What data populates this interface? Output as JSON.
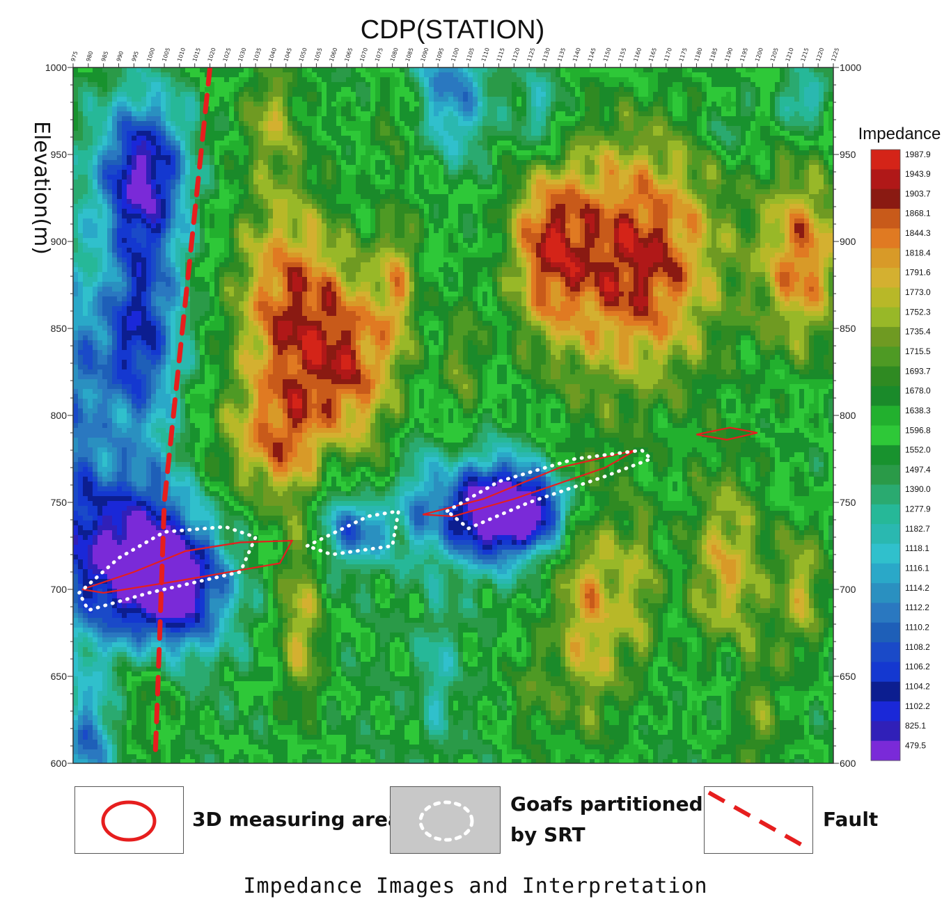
{
  "chart_data": {
    "type": "heatmap",
    "title": "CDP(STATION)",
    "ylabel": "Elevation(m)",
    "x_tick_labels": [
      "975",
      "980",
      "985",
      "990",
      "995",
      "1000",
      "1005",
      "1010",
      "1015",
      "1020",
      "1025",
      "1030",
      "1035",
      "1040",
      "1045",
      "1050",
      "1055",
      "1060",
      "1065",
      "1070",
      "1075",
      "1080",
      "1085",
      "1090",
      "1095",
      "1100",
      "1105",
      "1110",
      "1115",
      "1120",
      "1125",
      "1130",
      "1135",
      "1140",
      "1145",
      "1150",
      "1155",
      "1160",
      "1165",
      "1170",
      "1175",
      "1180",
      "1185",
      "1190",
      "1195",
      "1200",
      "1205",
      "1210",
      "1215",
      "1220",
      "1225"
    ],
    "xlim": [
      975,
      1225
    ],
    "y_ticks": [
      1000,
      950,
      900,
      850,
      800,
      750,
      700,
      650,
      600
    ],
    "ylim": [
      600,
      1000
    ],
    "colorbar": {
      "label": "Impedance",
      "values": [
        "1987.9",
        "1943.9",
        "1903.7",
        "1868.1",
        "1844.3",
        "1818.4",
        "1791.6",
        "1773.0",
        "1752.3",
        "1735.4",
        "1715.5",
        "1693.7",
        "1678.0",
        "1638.3",
        "1596.8",
        "1552.0",
        "1497.4",
        "1390.0",
        "1277.9",
        "1182.7",
        "1118.1",
        "1116.1",
        "1114.2",
        "1112.2",
        "1110.2",
        "1108.2",
        "1106.2",
        "1104.2",
        "1102.2",
        "825.1",
        "479.5"
      ],
      "colors": [
        "#d42418",
        "#b01818",
        "#8a1a12",
        "#c85a1a",
        "#e07a22",
        "#d89a28",
        "#d4b030",
        "#b8b828",
        "#98b828",
        "#6f9a22",
        "#4e9a24",
        "#2f8a22",
        "#1a8a2a",
        "#22b02e",
        "#2ec838",
        "#18922e",
        "#2a9a48",
        "#2aaa70",
        "#26b898",
        "#2ab8b0",
        "#30c0cc",
        "#2aa8c8",
        "#2a90c0",
        "#2a78c0",
        "#1e5fb8",
        "#1a4ac8",
        "#1438d0",
        "#0c1e90",
        "#1a28d8",
        "#3020b8",
        "#7a2ad8"
      ]
    },
    "fault_line": [
      [
        1020,
        1000
      ],
      [
        1017,
        950
      ],
      [
        1014,
        900
      ],
      [
        1011,
        850
      ],
      [
        1008,
        800
      ],
      [
        1005,
        750
      ],
      [
        1004,
        700
      ],
      [
        1003,
        650
      ],
      [
        1002,
        603
      ]
    ],
    "goafs_srt": [
      [
        [
          977,
          698
        ],
        [
          990,
          718
        ],
        [
          1005,
          733
        ],
        [
          1025,
          736
        ],
        [
          1035,
          730
        ],
        [
          1030,
          710
        ],
        [
          1000,
          698
        ],
        [
          980,
          688
        ]
      ],
      [
        [
          1052,
          725
        ],
        [
          1072,
          742
        ],
        [
          1082,
          745
        ],
        [
          1080,
          725
        ],
        [
          1060,
          720
        ]
      ],
      [
        [
          1098,
          745
        ],
        [
          1115,
          762
        ],
        [
          1140,
          775
        ],
        [
          1162,
          780
        ],
        [
          1165,
          775
        ],
        [
          1150,
          765
        ],
        [
          1125,
          750
        ],
        [
          1105,
          735
        ]
      ]
    ],
    "measuring_areas_3d": [
      [
        [
          978,
          700
        ],
        [
          995,
          710
        ],
        [
          1012,
          722
        ],
        [
          1030,
          727
        ],
        [
          1047,
          728
        ],
        [
          1043,
          715
        ],
        [
          1010,
          705
        ],
        [
          985,
          698
        ]
      ],
      [
        [
          1090,
          743
        ],
        [
          1110,
          752
        ],
        [
          1135,
          770
        ],
        [
          1160,
          780
        ],
        [
          1150,
          770
        ],
        [
          1120,
          752
        ],
        [
          1100,
          742
        ]
      ],
      [
        [
          1180,
          789
        ],
        [
          1191,
          793
        ],
        [
          1200,
          790
        ],
        [
          1190,
          786
        ]
      ]
    ]
  },
  "legend": {
    "measuring_area_label": "3D measuring area",
    "goaf_label_line1": "Goafs partitioned",
    "goaf_label_line2": "by SRT",
    "fault_label": "Fault",
    "measuring_color": "#e61e1e",
    "fault_color": "#e61e1e",
    "goaf_color": "#ffffff"
  },
  "caption": "Impedance Images and Interpretation"
}
